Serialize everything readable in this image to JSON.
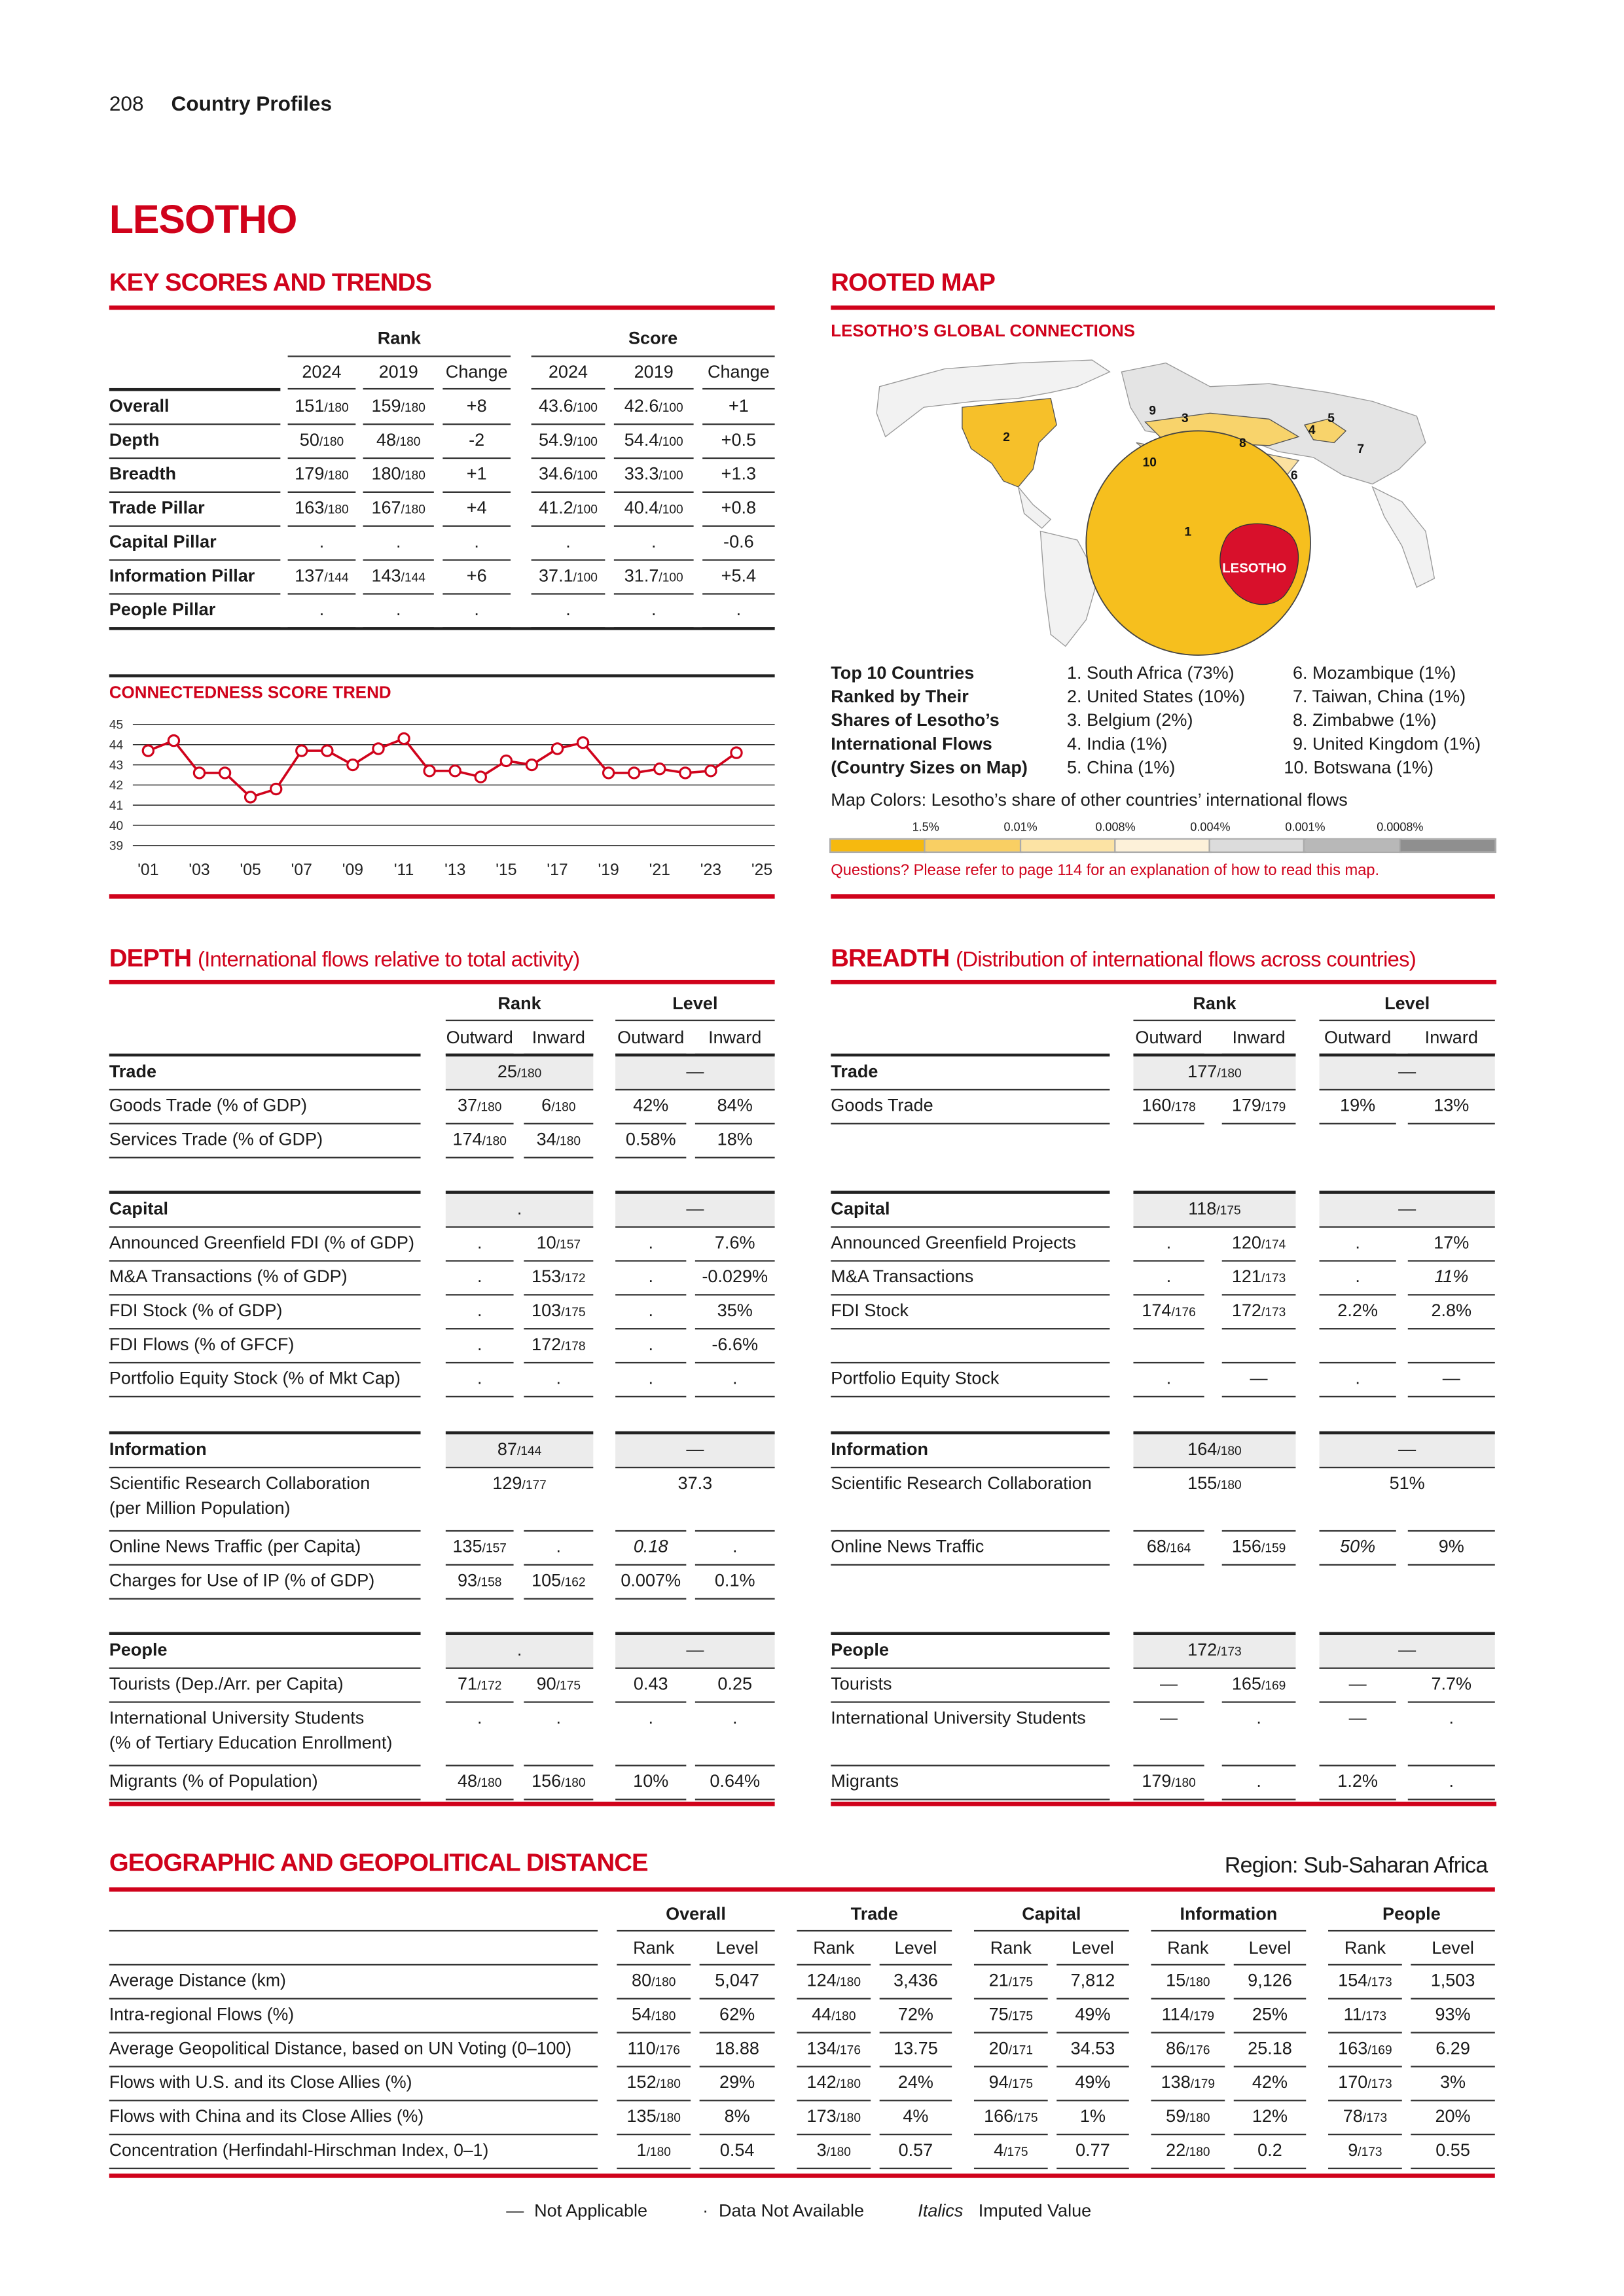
{
  "header": {
    "page": "208",
    "section": "Country Profiles"
  },
  "country": "LESOTHO",
  "key_scores": {
    "title": "KEY SCORES AND TRENDS",
    "groups": [
      "Rank",
      "Score"
    ],
    "columns": [
      "2024",
      "2019",
      "Change",
      "2024",
      "2019",
      "Change"
    ],
    "rows": [
      {
        "label": "Overall",
        "cells": [
          [
            "151",
            "/180"
          ],
          [
            "159",
            "/180"
          ],
          "+8",
          [
            "43.6",
            "/100"
          ],
          [
            "42.6",
            "/100"
          ],
          "+1"
        ]
      },
      {
        "label": "Depth",
        "cells": [
          [
            "50",
            "/180"
          ],
          [
            "48",
            "/180"
          ],
          "-2",
          [
            "54.9",
            "/100"
          ],
          [
            "54.4",
            "/100"
          ],
          "+0.5"
        ]
      },
      {
        "label": "Breadth",
        "cells": [
          [
            "179",
            "/180"
          ],
          [
            "180",
            "/180"
          ],
          "+1",
          [
            "34.6",
            "/100"
          ],
          [
            "33.3",
            "/100"
          ],
          "+1.3"
        ]
      },
      {
        "label": "Trade Pillar",
        "cells": [
          [
            "163",
            "/180"
          ],
          [
            "167",
            "/180"
          ],
          "+4",
          [
            "41.2",
            "/100"
          ],
          [
            "40.4",
            "/100"
          ],
          "+0.8"
        ]
      },
      {
        "label": "Capital Pillar",
        "cells": [
          ".",
          ".",
          ".",
          ".",
          ".",
          "-0.6"
        ]
      },
      {
        "label": "Information Pillar",
        "cells": [
          [
            "137",
            "/144"
          ],
          [
            "143",
            "/144"
          ],
          "+6",
          [
            "37.1",
            "/100"
          ],
          [
            "31.7",
            "/100"
          ],
          "+5.4"
        ]
      },
      {
        "label": "People Pillar",
        "cells": [
          ".",
          ".",
          ".",
          ".",
          ".",
          "."
        ]
      }
    ]
  },
  "chart_data": {
    "type": "line",
    "title": "CONNECTEDNESS SCORE TREND",
    "x": [
      2001,
      2002,
      2003,
      2004,
      2005,
      2006,
      2007,
      2008,
      2009,
      2010,
      2011,
      2012,
      2013,
      2014,
      2015,
      2016,
      2017,
      2018,
      2019,
      2020,
      2021,
      2022,
      2023,
      2024
    ],
    "series": [
      {
        "color": "#d0021b",
        "values": [
          43.7,
          44.2,
          42.6,
          42.6,
          41.4,
          41.8,
          43.7,
          43.7,
          43.0,
          43.8,
          44.3,
          42.7,
          42.7,
          42.4,
          43.2,
          43.0,
          43.8,
          44.1,
          42.6,
          42.6,
          42.8,
          42.6,
          42.7,
          43.6
        ]
      }
    ],
    "xlim": [
      2000.4,
      2025.5
    ],
    "ylim": [
      39,
      45
    ],
    "yticks": [
      39,
      40,
      41,
      42,
      43,
      44,
      45
    ],
    "xticks": [
      {
        "value": 2001,
        "label": "'01"
      },
      {
        "value": 2003,
        "label": "'03"
      },
      {
        "value": 2005,
        "label": "'05"
      },
      {
        "value": 2007,
        "label": "'07"
      },
      {
        "value": 2009,
        "label": "'09"
      },
      {
        "value": 2011,
        "label": "'11"
      },
      {
        "value": 2013,
        "label": "'13"
      },
      {
        "value": 2015,
        "label": "'15"
      },
      {
        "value": 2017,
        "label": "'17"
      },
      {
        "value": 2019,
        "label": "'19"
      },
      {
        "value": 2021,
        "label": "'21"
      },
      {
        "value": 2023,
        "label": "'23"
      },
      {
        "value": 2025,
        "label": "'25"
      }
    ],
    "grid": true
  },
  "map": {
    "title": "ROOTED MAP",
    "subtitle": "LESOTHO’S GLOBAL CONNECTIONS",
    "labels": [
      "1",
      "2",
      "3",
      "4",
      "5",
      "6",
      "7",
      "8",
      "9",
      "10",
      "LESOTHO"
    ],
    "top10_heading": [
      "Top 10 Countries",
      "Ranked by Their",
      "Shares of Lesotho’s",
      "International Flows",
      "(Country Sizes on Map)"
    ],
    "top10": [
      "1. South Africa (73%)",
      "2. United States (10%)",
      "3. Belgium (2%)",
      "4. India (1%)",
      "5. China (1%)",
      "6. Mozambique (1%)",
      "7. Taiwan, China (1%)",
      "8. Zimbabwe (1%)",
      "9. United Kingdom (1%)",
      "10. Botswana (1%)"
    ],
    "colors_caption": "Map Colors: Lesotho’s share of other countries’ international flows",
    "legend_ticks": [
      "1.5%",
      "0.01%",
      "0.008%",
      "0.004%",
      "0.001%",
      "0.0008%"
    ],
    "legend_colors": [
      "#f6b90f",
      "#f9cf63",
      "#fce3a4",
      "#fdf1d9",
      "#dcdcdc",
      "#b8b8b8",
      "#8f8f8f"
    ],
    "note": "Questions? Please refer to page 114 for an explanation of how to read this map."
  },
  "depth": {
    "title": "DEPTH",
    "subtitle": "(International flows relative to total activity)",
    "groups": [
      "Rank",
      "Level"
    ],
    "columns": [
      "Outward",
      "Inward",
      "Outward",
      "Inward"
    ],
    "sections": [
      {
        "name": "Trade",
        "rank": [
          "25",
          "/180"
        ],
        "level": "—",
        "rows": [
          {
            "label": "Goods Trade (% of GDP)",
            "cells": [
              [
                "37",
                "/180"
              ],
              [
                "6",
                "/180"
              ],
              "42%",
              "84%"
            ]
          },
          {
            "label": "Services Trade (% of GDP)",
            "cells": [
              [
                "174",
                "/180"
              ],
              [
                "34",
                "/180"
              ],
              "0.58%",
              "18%"
            ]
          }
        ]
      },
      {
        "name": "Capital",
        "rank": ".",
        "level": "—",
        "rows": [
          {
            "label": "Announced Greenfield FDI (% of GDP)",
            "cells": [
              ".",
              [
                "10",
                "/157"
              ],
              ".",
              "7.6%"
            ]
          },
          {
            "label": "M&A Transactions (% of GDP)",
            "cells": [
              ".",
              [
                "153",
                "/172"
              ],
              ".",
              "-0.029%"
            ]
          },
          {
            "label": "FDI Stock (% of GDP)",
            "cells": [
              ".",
              [
                "103",
                "/175"
              ],
              ".",
              "35%"
            ]
          },
          {
            "label": "FDI Flows (% of GFCF)",
            "cells": [
              ".",
              [
                "172",
                "/178"
              ],
              ".",
              "-6.6%"
            ]
          },
          {
            "label": "Portfolio Equity Stock (% of Mkt Cap)",
            "cells": [
              ".",
              ".",
              ".",
              "."
            ]
          }
        ]
      },
      {
        "name": "Information",
        "rank": [
          "87",
          "/144"
        ],
        "level": "—",
        "rows": [
          {
            "label": "Scientific Research Collaboration\n(per Million Population)",
            "rank": [
              "129",
              "/177"
            ],
            "level": "37.3"
          },
          {
            "label": "Online News Traffic (per Capita)",
            "cells": [
              [
                "135",
                "/157"
              ],
              ".",
              {
                "text": "0.18",
                "italic": true
              },
              "."
            ]
          },
          {
            "label": "Charges for Use of IP (% of GDP)",
            "cells": [
              [
                "93",
                "/158"
              ],
              [
                "105",
                "/162"
              ],
              "0.007%",
              "0.1%"
            ]
          }
        ]
      },
      {
        "name": "People",
        "rank": ".",
        "level": "—",
        "rows": [
          {
            "label": "Tourists (Dep./Arr. per Capita)",
            "cells": [
              [
                "71",
                "/172"
              ],
              [
                "90",
                "/175"
              ],
              "0.43",
              "0.25"
            ]
          },
          {
            "label": "International University Students\n(% of Tertiary Education Enrollment)",
            "cells": [
              ".",
              ".",
              ".",
              "."
            ]
          },
          {
            "label": "Migrants (% of Population)",
            "cells": [
              [
                "48",
                "/180"
              ],
              [
                "156",
                "/180"
              ],
              "10%",
              "0.64%"
            ]
          }
        ]
      }
    ]
  },
  "breadth": {
    "title": "BREADTH",
    "subtitle": "(Distribution of international flows across countries)",
    "groups": [
      "Rank",
      "Level"
    ],
    "columns": [
      "Outward",
      "Inward",
      "Outward",
      "Inward"
    ],
    "sections": [
      {
        "name": "Trade",
        "rank": [
          "177",
          "/180"
        ],
        "level": "—",
        "rows": [
          {
            "label": "Goods Trade",
            "cells": [
              [
                "160",
                "/178"
              ],
              [
                "179",
                "/179"
              ],
              "19%",
              "13%"
            ]
          }
        ]
      },
      {
        "name": "Capital",
        "rank": [
          "118",
          "/175"
        ],
        "level": "—",
        "rows": [
          {
            "label": "Announced Greenfield Projects",
            "cells": [
              ".",
              [
                "120",
                "/174"
              ],
              ".",
              "17%"
            ]
          },
          {
            "label": "M&A Transactions",
            "cells": [
              ".",
              [
                "121",
                "/173"
              ],
              ".",
              {
                "text": "11%",
                "italic": true
              }
            ]
          },
          {
            "label": "FDI Stock",
            "cells": [
              [
                "174",
                "/176"
              ],
              [
                "172",
                "/173"
              ],
              "2.2%",
              "2.8%"
            ]
          },
          null,
          {
            "label": "Portfolio Equity Stock",
            "cells": [
              ".",
              "—",
              ".",
              "—"
            ]
          }
        ]
      },
      {
        "name": "Information",
        "rank": [
          "164",
          "/180"
        ],
        "level": "—",
        "rows": [
          {
            "label": "Scientific Research Collaboration",
            "rank": [
              "155",
              "/180"
            ],
            "level": "51%"
          },
          {
            "label": "Online News Traffic",
            "cells": [
              [
                "68",
                "/164"
              ],
              [
                "156",
                "/159"
              ],
              {
                "text": "50%",
                "italic": true
              },
              "9%"
            ]
          }
        ]
      },
      {
        "name": "People",
        "rank": [
          "172",
          "/173"
        ],
        "level": "—",
        "rows": [
          {
            "label": "Tourists",
            "cells": [
              "—",
              [
                "165",
                "/169"
              ],
              "—",
              "7.7%"
            ]
          },
          {
            "label": "International University Students",
            "cells": [
              "—",
              ".",
              "—",
              "."
            ]
          },
          {
            "label": "Migrants",
            "cells": [
              [
                "179",
                "/180"
              ],
              ".",
              "1.2%",
              "."
            ]
          }
        ]
      }
    ]
  },
  "geo": {
    "title": "GEOGRAPHIC AND GEOPOLITICAL DISTANCE",
    "region": "Region: Sub-Saharan Africa",
    "groups": [
      "Overall",
      "Trade",
      "Capital",
      "Information",
      "People"
    ],
    "columns": [
      "Rank",
      "Level",
      "Rank",
      "Level",
      "Rank",
      "Level",
      "Rank",
      "Level",
      "Rank",
      "Level"
    ],
    "rows": [
      {
        "label": "Average Distance (km)",
        "cells": [
          [
            "80",
            "/180"
          ],
          "5,047",
          [
            "124",
            "/180"
          ],
          "3,436",
          [
            "21",
            "/175"
          ],
          "7,812",
          [
            "15",
            "/180"
          ],
          "9,126",
          [
            "154",
            "/173"
          ],
          "1,503"
        ]
      },
      {
        "label": "Intra-regional Flows (%)",
        "cells": [
          [
            "54",
            "/180"
          ],
          "62%",
          [
            "44",
            "/180"
          ],
          "72%",
          [
            "75",
            "/175"
          ],
          "49%",
          [
            "114",
            "/179"
          ],
          "25%",
          [
            "11",
            "/173"
          ],
          "93%"
        ]
      },
      {
        "label": "Average Geopolitical Distance, based on UN Voting (0–100)",
        "cells": [
          [
            "110",
            "/176"
          ],
          "18.88",
          [
            "134",
            "/176"
          ],
          "13.75",
          [
            "20",
            "/171"
          ],
          "34.53",
          [
            "86",
            "/176"
          ],
          "25.18",
          [
            "163",
            "/169"
          ],
          "6.29"
        ]
      },
      {
        "label": "Flows with U.S. and its Close Allies (%)",
        "cells": [
          [
            "152",
            "/180"
          ],
          "29%",
          [
            "142",
            "/180"
          ],
          "24%",
          [
            "94",
            "/175"
          ],
          "49%",
          [
            "138",
            "/179"
          ],
          "42%",
          [
            "170",
            "/173"
          ],
          "3%"
        ]
      },
      {
        "label": "Flows with China and its Close Allies (%)",
        "cells": [
          [
            "135",
            "/180"
          ],
          "8%",
          [
            "173",
            "/180"
          ],
          "4%",
          [
            "166",
            "/175"
          ],
          "1%",
          [
            "59",
            "/180"
          ],
          "12%",
          [
            "78",
            "/173"
          ],
          "20%"
        ]
      },
      {
        "label": "Concentration (Herfindahl-Hirschman Index, 0–1)",
        "cells": [
          [
            "1",
            "/180"
          ],
          "0.54",
          [
            "3",
            "/180"
          ],
          "0.57",
          [
            "4",
            "/175"
          ],
          "0.77",
          [
            "22",
            "/180"
          ],
          "0.2",
          [
            "9",
            "/173"
          ],
          "0.55"
        ]
      }
    ]
  },
  "footer": [
    {
      "symbol": "—",
      "text": "Not Applicable"
    },
    {
      "symbol": "·",
      "text": "Data Not Available"
    },
    {
      "symbol": "Italics",
      "text": "Imputed Value"
    }
  ]
}
